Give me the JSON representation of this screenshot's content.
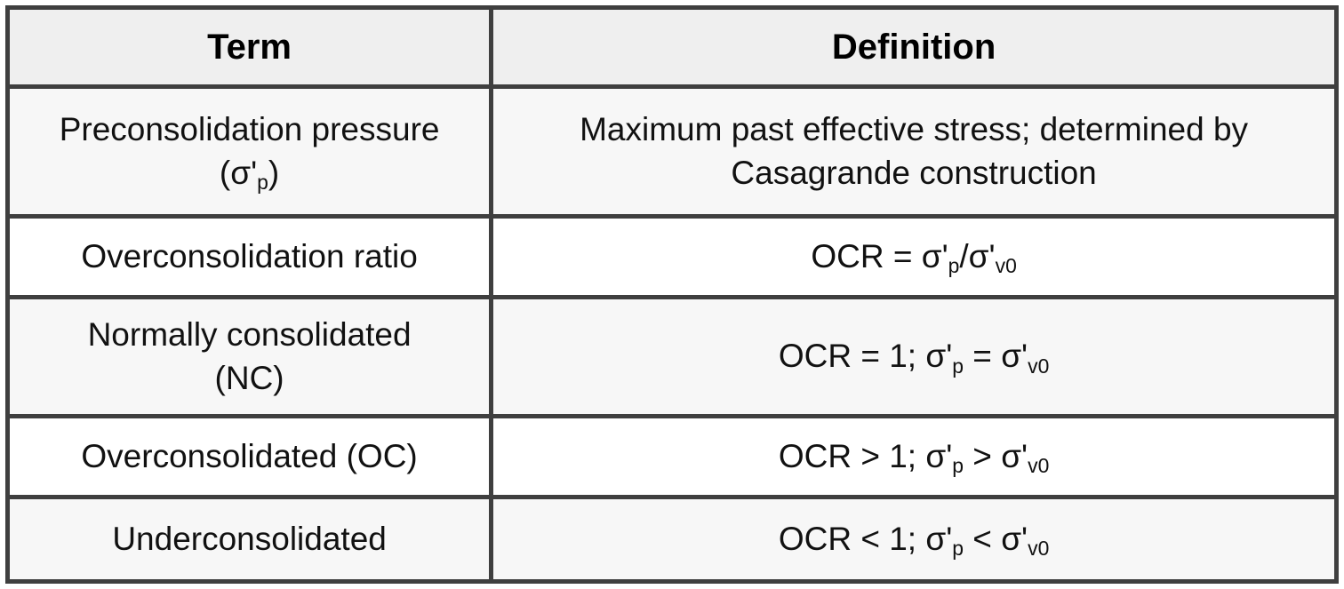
{
  "table": {
    "columns": [
      {
        "label": "Term"
      },
      {
        "label": "Definition"
      }
    ],
    "rows": [
      {
        "term": "Preconsolidation pressure\n(σ'_{p})",
        "definition": "Maximum past effective stress; determined by\nCasagrande construction"
      },
      {
        "term": "Overconsolidation ratio",
        "definition": "OCR = σ'_{p}/σ'_{v0}"
      },
      {
        "term": "Normally consolidated\n(NC)",
        "definition": "OCR = 1; σ'_{p} = σ'_{v0}"
      },
      {
        "term": "Overconsolidated (OC)",
        "definition": "OCR > 1; σ'_{p} > σ'_{v0}"
      },
      {
        "term": "Underconsolidated",
        "definition": "OCR < 1; σ'_{p} < σ'_{v0}"
      }
    ]
  },
  "colors": {
    "border": "#3f3f3f",
    "header_bg": "#efefef",
    "stripe_row_bg": "#f7f7f7",
    "plain_row_bg": "#ffffff",
    "text": "#111111"
  }
}
